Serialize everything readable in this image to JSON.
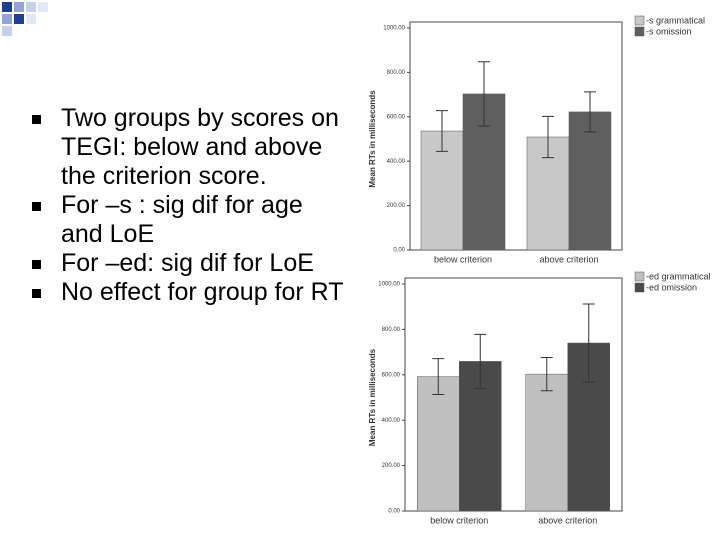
{
  "bullets": [
    "Two groups by scores on TEGI: below and above the criterion score.",
    "For –s : sig dif for age and LoE",
    "For –ed: sig dif for LoE",
    "No effect for group for RT"
  ],
  "chart_data": [
    {
      "type": "bar",
      "y_label": "Mean RTs in milliseconds",
      "categories": [
        "below criterion",
        "above criterion"
      ],
      "series": [
        {
          "name": "-s grammatical",
          "color": "#c8c8c8",
          "values": [
            536,
            509
          ],
          "errors": [
            92,
            93
          ]
        },
        {
          "name": "-s omission",
          "color": "#5f5f5f",
          "values": [
            703,
            622
          ],
          "errors": [
            145,
            90
          ]
        }
      ],
      "ylim": [
        0,
        1000
      ],
      "yticks": [
        {
          "value": 0,
          "label": "0.00"
        },
        {
          "value": 200,
          "label": "200.00"
        },
        {
          "value": 400,
          "label": "400.00"
        },
        {
          "value": 600,
          "label": "600.00"
        },
        {
          "value": 800,
          "label": "800.00"
        },
        {
          "value": 1000,
          "label": "1000.00"
        }
      ]
    },
    {
      "type": "bar",
      "y_label": "Mean RTs in milliseconds",
      "categories": [
        "below criterion",
        "above criterion"
      ],
      "series": [
        {
          "name": "-ed grammatical",
          "color": "#c0c0c0",
          "values": [
            592,
            603
          ],
          "errors": [
            79,
            73
          ]
        },
        {
          "name": "-ed omission",
          "color": "#4a4a4a",
          "values": [
            659,
            740
          ],
          "errors": [
            119,
            172
          ]
        }
      ],
      "ylim": [
        0,
        1000
      ],
      "yticks": [
        {
          "value": 0,
          "label": "0.00"
        },
        {
          "value": 200,
          "label": "200.00"
        },
        {
          "value": 400,
          "label": "400.00"
        },
        {
          "value": 600,
          "label": "600.00"
        },
        {
          "value": 800,
          "label": "800.00"
        },
        {
          "value": 1000,
          "label": "1000.00"
        }
      ]
    }
  ]
}
